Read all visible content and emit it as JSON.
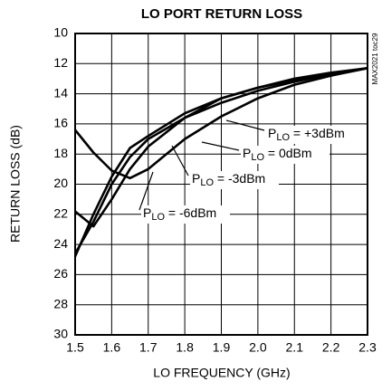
{
  "chart_data": {
    "type": "line",
    "title": "LO PORT RETURN LOSS",
    "x_label": "LO FREQUENCY (GHz)",
    "y_label": "RETURN LOSS (dB)",
    "side_note": "MAX2021 toc29",
    "x": [
      1.5,
      1.55,
      1.6,
      1.65,
      1.7,
      1.8,
      1.9,
      2.0,
      2.1,
      2.2,
      2.3
    ],
    "series": [
      {
        "name_parts": [
          "P",
          "LO",
          " = +3dBm"
        ],
        "color": "#000000",
        "values": [
          16.4,
          17.9,
          19.1,
          19.6,
          19.0,
          17.0,
          15.5,
          14.3,
          13.4,
          12.8,
          12.3
        ]
      },
      {
        "name_parts": [
          "P",
          "LO",
          " = 0dBm"
        ],
        "color": "#000000",
        "values": [
          24.8,
          22.0,
          19.5,
          17.6,
          16.8,
          15.3,
          14.3,
          13.6,
          13.1,
          12.7,
          12.3
        ]
      },
      {
        "name_parts": [
          "P",
          "LO",
          " = -3dBm"
        ],
        "color": "#000000",
        "values": [
          24.6,
          22.5,
          20.0,
          18.2,
          17.0,
          15.6,
          14.6,
          13.8,
          13.2,
          12.7,
          12.3
        ]
      },
      {
        "name_parts": [
          "P",
          "LO",
          " = -6dBm"
        ],
        "color": "#000000",
        "values": [
          21.8,
          22.8,
          21.0,
          19.0,
          17.5,
          15.6,
          14.3,
          13.6,
          13.0,
          12.6,
          12.3
        ]
      }
    ],
    "xlim": [
      1.5,
      2.3
    ],
    "xticks": [
      1.5,
      1.6,
      1.7,
      1.8,
      1.9,
      {
        "value": 2,
        "label": "2.0"
      },
      2.1,
      2.2,
      2.3
    ],
    "ylim": [
      10,
      30
    ],
    "yticks": [
      10,
      12,
      14,
      16,
      18,
      20,
      22,
      24,
      26,
      28,
      30
    ],
    "y_inverted": true,
    "grid": true
  }
}
